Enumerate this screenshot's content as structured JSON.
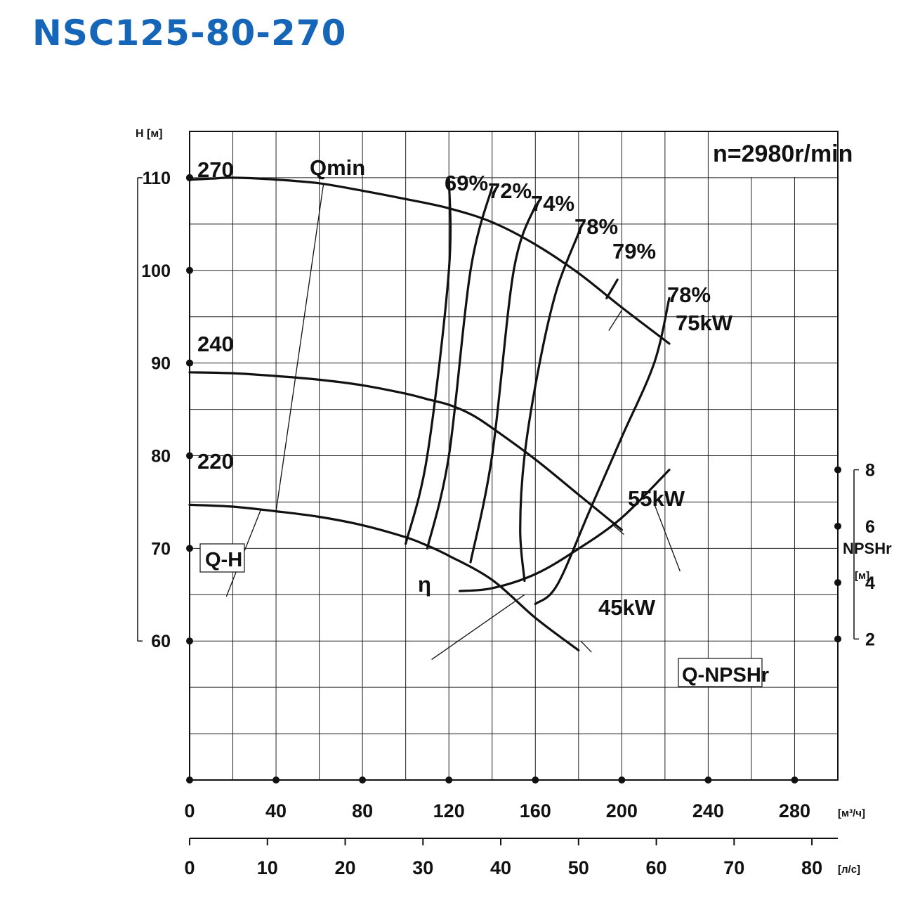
{
  "title": "NSC125-80-270",
  "chart_data": {
    "type": "line",
    "title": "NSC125-80-270",
    "speed_label": "n=2980r/min",
    "x_axis": {
      "unit": "[м³/ч]",
      "ticks": [
        0,
        40,
        80,
        120,
        160,
        200,
        240,
        280
      ],
      "range": [
        0,
        300
      ]
    },
    "x2_axis": {
      "unit": "[л/с]",
      "ticks": [
        0,
        10,
        20,
        30,
        40,
        50,
        60,
        70,
        80
      ]
    },
    "y_axis": {
      "unit": "H [м]",
      "ticks": [
        60,
        70,
        80,
        90,
        100,
        110
      ],
      "range": [
        45,
        115
      ]
    },
    "y2_axis": {
      "title": "NPSHr",
      "unit": "[м]",
      "ticks": [
        2,
        4,
        6,
        8
      ],
      "range": [
        -3,
        20
      ]
    },
    "qh_curves": [
      {
        "name": "270",
        "points": [
          [
            0,
            109.8
          ],
          [
            10,
            109.9
          ],
          [
            20,
            110
          ],
          [
            40,
            109.8
          ],
          [
            60,
            109.4
          ],
          [
            80,
            108.6
          ],
          [
            100,
            107.7
          ],
          [
            120,
            106.7
          ],
          [
            140,
            105.2
          ],
          [
            160,
            102.8
          ],
          [
            180,
            99.7
          ],
          [
            200,
            96
          ],
          [
            222,
            92.1
          ]
        ]
      },
      {
        "name": "240",
        "points": [
          [
            0,
            89
          ],
          [
            20,
            88.9
          ],
          [
            40,
            88.6
          ],
          [
            60,
            88.2
          ],
          [
            80,
            87.6
          ],
          [
            100,
            86.7
          ],
          [
            110,
            86.1
          ],
          [
            120,
            85.5
          ],
          [
            130,
            84.5
          ],
          [
            140,
            83
          ],
          [
            160,
            79.6
          ],
          [
            180,
            75.8
          ],
          [
            200,
            72
          ]
        ]
      },
      {
        "name": "220",
        "points": [
          [
            0,
            74.7
          ],
          [
            20,
            74.5
          ],
          [
            40,
            74
          ],
          [
            60,
            73.4
          ],
          [
            80,
            72.5
          ],
          [
            100,
            71.2
          ],
          [
            110,
            70.3
          ],
          [
            120,
            69.2
          ],
          [
            140,
            66.6
          ],
          [
            160,
            62.5
          ],
          [
            180,
            59
          ]
        ]
      }
    ],
    "efficiency_curves": [
      {
        "label": "69%",
        "points": [
          [
            100,
            70.5
          ],
          [
            110,
            80
          ],
          [
            120,
            100
          ],
          [
            120,
            110
          ]
        ]
      },
      {
        "label": "72%",
        "points": [
          [
            110,
            70
          ],
          [
            120,
            80
          ],
          [
            130,
            100
          ],
          [
            140,
            109
          ]
        ]
      },
      {
        "label": "74%",
        "points": [
          [
            130,
            68.5
          ],
          [
            140,
            80
          ],
          [
            150,
            100
          ],
          [
            160,
            107
          ]
        ]
      },
      {
        "label": "78%",
        "points": [
          [
            155,
            66.5
          ],
          [
            153,
            72
          ],
          [
            155,
            80
          ],
          [
            162,
            90
          ],
          [
            170,
            98
          ],
          [
            180,
            104
          ]
        ]
      },
      {
        "label": "79%",
        "points": [
          [
            193,
            97
          ],
          [
            198,
            99
          ]
        ]
      },
      {
        "label": "78%",
        "points": [
          [
            160,
            64
          ],
          [
            170,
            66
          ],
          [
            185,
            74
          ],
          [
            200,
            82
          ],
          [
            215,
            90
          ],
          [
            222,
            97
          ]
        ]
      }
    ],
    "npsh_curve": {
      "name": "Q-NPSHr",
      "points": [
        [
          125,
          3.7
        ],
        [
          140,
          3.8
        ],
        [
          160,
          4.3
        ],
        [
          180,
          5.2
        ],
        [
          200,
          6.3
        ],
        [
          222,
          8
        ]
      ]
    },
    "annotations": {
      "qmin": "Qmin",
      "qh": "Q-H",
      "eta": "η",
      "q_npshr": "Q-NPSHr",
      "eff_labels": [
        "69%",
        "72%",
        "74%",
        "78%",
        "79%",
        "78%"
      ],
      "power_labels": [
        "75kW",
        "55kW",
        "45kW"
      ],
      "impeller_labels": [
        "270",
        "240",
        "220"
      ]
    }
  }
}
